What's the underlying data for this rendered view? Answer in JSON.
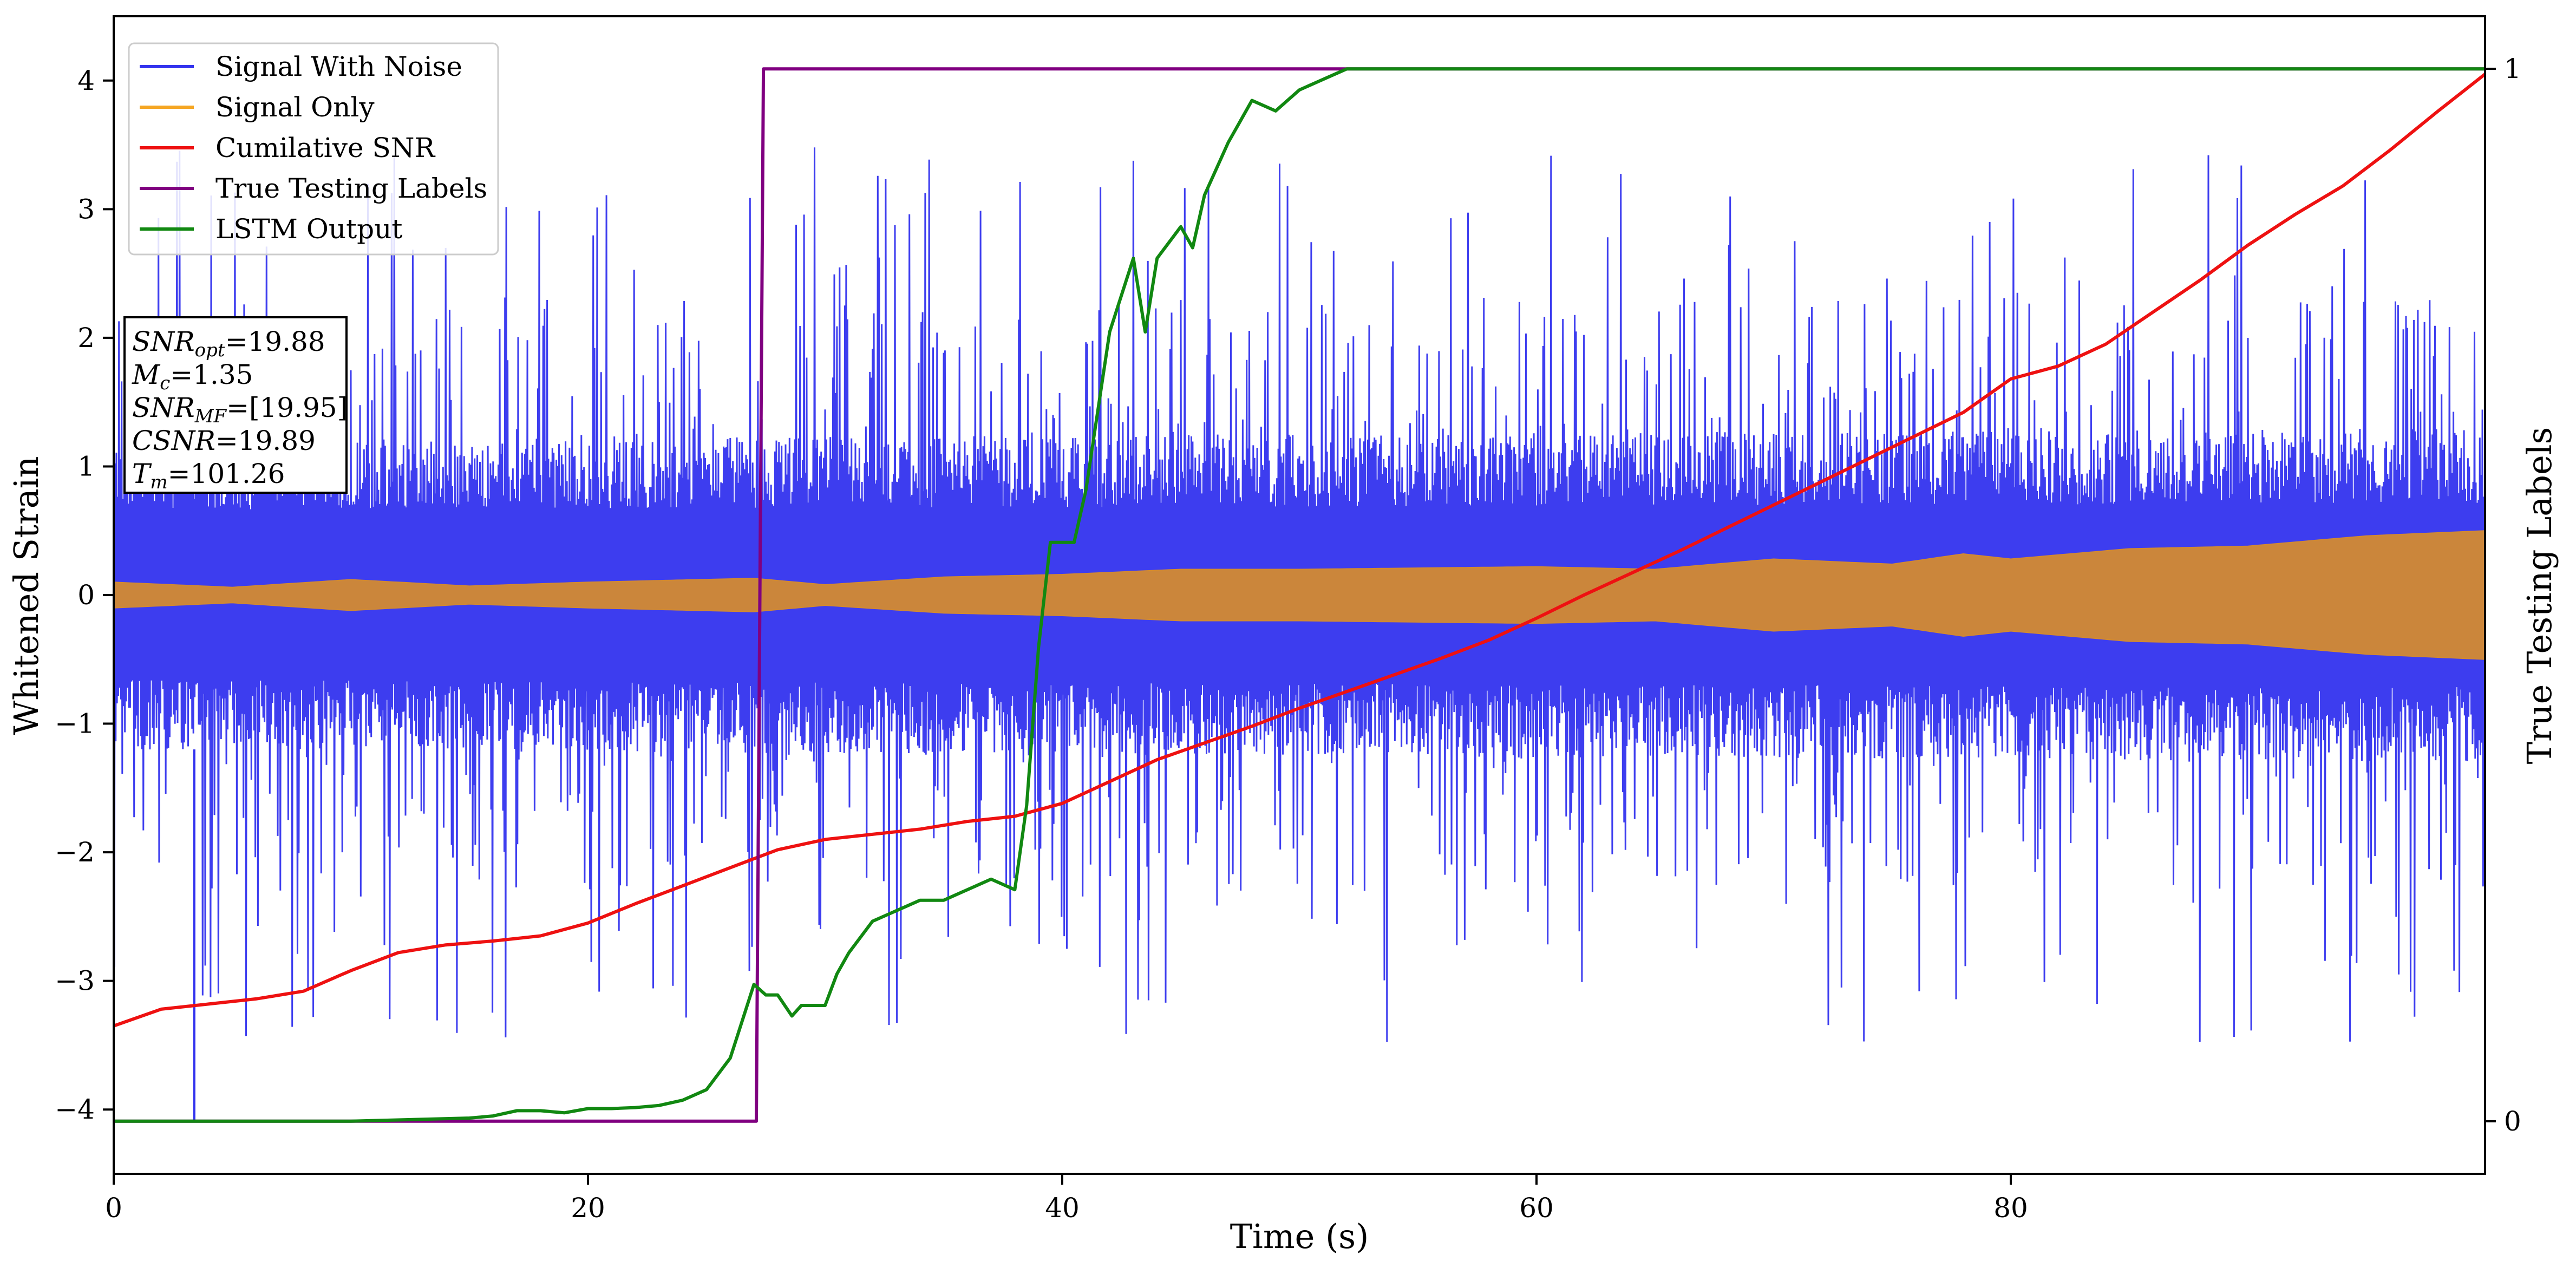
{
  "chart_data": {
    "type": "line",
    "xlabel": "Time (s)",
    "ylabel": "Whitened Strain",
    "ylabel_right": "True Testing Labels",
    "xlim": [
      0,
      100
    ],
    "ylim": [
      -4.5,
      4.5
    ],
    "ylim_right": [
      -0.05,
      1.05
    ],
    "x_ticks": [
      0,
      20,
      40,
      60,
      80
    ],
    "y_ticks": [
      -4,
      -3,
      -2,
      -1,
      0,
      1,
      2,
      3,
      4
    ],
    "y_ticks_right": [
      0,
      1
    ],
    "grid": false,
    "legend_position": "top-left",
    "legend": [
      {
        "label": "Signal With Noise",
        "color": "#3333ee"
      },
      {
        "label": "Signal Only",
        "color": "#f5a623"
      },
      {
        "label": "Cumilative SNR",
        "color": "#ee1111"
      },
      {
        "label": "True Testing Labels",
        "color": "#800080"
      },
      {
        "label": "LSTM Output",
        "color": "#118811"
      }
    ],
    "annotation": [
      {
        "base": "SNR",
        "sub": "opt",
        "value": "=19.88"
      },
      {
        "base": "M",
        "sub": "c",
        "value": "=1.35"
      },
      {
        "base": "SNR",
        "sub": "MF",
        "value": "=[19.95]"
      },
      {
        "base": "CSNR",
        "sub": "",
        "value": "=19.89"
      },
      {
        "base": "T",
        "sub": "m",
        "value": "=101.26"
      }
    ],
    "series": [
      {
        "name": "Signal With Noise",
        "axis": "left",
        "color": "#3333ee",
        "kind": "noise",
        "core_envelope": [
          [
            0,
            1.2
          ],
          [
            50,
            1.25
          ],
          [
            100,
            1.3
          ]
        ],
        "spike_max": 3.5,
        "spike_min": -4.1
      },
      {
        "name": "Signal Only",
        "axis": "left",
        "color": "#d38a30",
        "kind": "envelope",
        "envelope": [
          [
            0,
            0.1
          ],
          [
            5,
            0.06
          ],
          [
            10,
            0.12
          ],
          [
            15,
            0.07
          ],
          [
            20,
            0.1
          ],
          [
            27,
            0.13
          ],
          [
            30,
            0.08
          ],
          [
            35,
            0.14
          ],
          [
            40,
            0.16
          ],
          [
            45,
            0.2
          ],
          [
            50,
            0.2
          ],
          [
            60,
            0.22
          ],
          [
            65,
            0.2
          ],
          [
            70,
            0.28
          ],
          [
            75,
            0.24
          ],
          [
            78,
            0.32
          ],
          [
            80,
            0.28
          ],
          [
            85,
            0.36
          ],
          [
            90,
            0.38
          ],
          [
            95,
            0.46
          ],
          [
            100,
            0.5
          ]
        ]
      },
      {
        "name": "Cumilative SNR",
        "axis": "left",
        "color": "#ee1111",
        "x": [
          0,
          2,
          4,
          6,
          8,
          10,
          12,
          14,
          16,
          18,
          20,
          22,
          24,
          26,
          28,
          30,
          32,
          34,
          36,
          38,
          40,
          42,
          44,
          46,
          48,
          50,
          52,
          54,
          56,
          58,
          60,
          62,
          64,
          66,
          68,
          70,
          72,
          74,
          76,
          78,
          80,
          82,
          84,
          86,
          88,
          90,
          92,
          94,
          96,
          98,
          100
        ],
        "y": [
          -3.35,
          -3.22,
          -3.18,
          -3.14,
          -3.08,
          -2.92,
          -2.78,
          -2.72,
          -2.69,
          -2.65,
          -2.55,
          -2.4,
          -2.26,
          -2.12,
          -1.98,
          -1.9,
          -1.86,
          -1.82,
          -1.76,
          -1.72,
          -1.62,
          -1.45,
          -1.28,
          -1.15,
          -1.02,
          -0.88,
          -0.75,
          -0.62,
          -0.49,
          -0.35,
          -0.18,
          0.0,
          0.17,
          0.34,
          0.52,
          0.7,
          0.88,
          1.06,
          1.24,
          1.42,
          1.68,
          1.78,
          1.95,
          2.2,
          2.45,
          2.72,
          2.96,
          3.18,
          3.46,
          3.76,
          4.05
        ]
      },
      {
        "name": "True Testing Labels",
        "axis": "right",
        "color": "#800080",
        "x": [
          0,
          27.1,
          27.4,
          100
        ],
        "y": [
          0,
          0,
          1,
          1
        ]
      },
      {
        "name": "LSTM Output",
        "axis": "right",
        "color": "#118811",
        "x": [
          0,
          10,
          15,
          16,
          17,
          18,
          19,
          20,
          21,
          22,
          23,
          24,
          25,
          26,
          27,
          27.5,
          28,
          28.6,
          29,
          30,
          30.5,
          31,
          32,
          33,
          34,
          35,
          36,
          37,
          38,
          38.5,
          39,
          39.5,
          40,
          40.5,
          41,
          42,
          43,
          43.5,
          44,
          45,
          45.5,
          46,
          47,
          48,
          49,
          50,
          51,
          52,
          53,
          55,
          57,
          60,
          70,
          80,
          90,
          100
        ],
        "y": [
          0.0,
          0.0,
          0.003,
          0.005,
          0.01,
          0.01,
          0.008,
          0.012,
          0.012,
          0.013,
          0.015,
          0.02,
          0.03,
          0.06,
          0.13,
          0.12,
          0.12,
          0.1,
          0.11,
          0.11,
          0.14,
          0.16,
          0.19,
          0.2,
          0.21,
          0.21,
          0.22,
          0.23,
          0.22,
          0.3,
          0.45,
          0.55,
          0.55,
          0.55,
          0.6,
          0.75,
          0.82,
          0.75,
          0.82,
          0.85,
          0.83,
          0.88,
          0.93,
          0.97,
          0.96,
          0.98,
          0.99,
          1.0,
          1.0,
          1.0,
          1.0,
          1.0,
          1.0,
          1.0,
          1.0,
          1.0
        ]
      }
    ]
  }
}
